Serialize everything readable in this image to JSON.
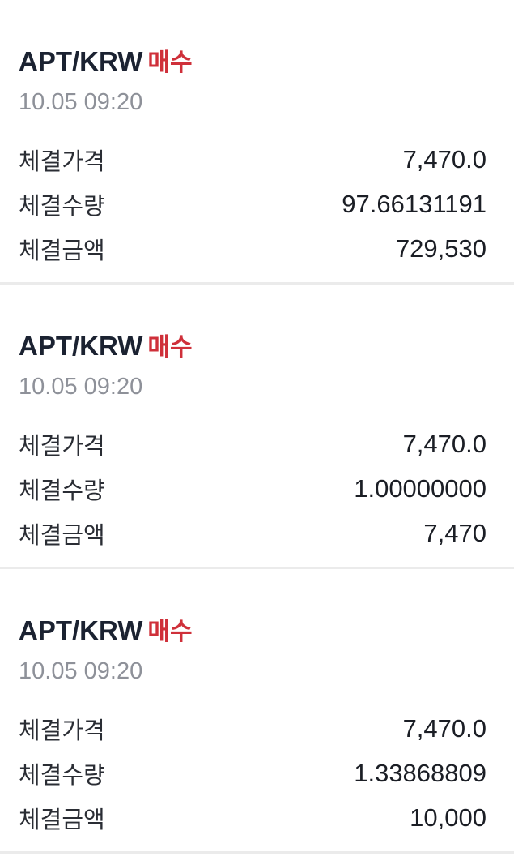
{
  "trades": [
    {
      "pair": "APT/KRW",
      "side": "매수",
      "time": "10.05 09:20",
      "rows": [
        {
          "label": "체결가격",
          "value": "7,470.0"
        },
        {
          "label": "체결수량",
          "value": "97.66131191"
        },
        {
          "label": "체결금액",
          "value": "729,530"
        }
      ]
    },
    {
      "pair": "APT/KRW",
      "side": "매수",
      "time": "10.05 09:20",
      "rows": [
        {
          "label": "체결가격",
          "value": "7,470.0"
        },
        {
          "label": "체결수량",
          "value": "1.00000000"
        },
        {
          "label": "체결금액",
          "value": "7,470"
        }
      ]
    },
    {
      "pair": "APT/KRW",
      "side": "매수",
      "time": "10.05 09:20",
      "rows": [
        {
          "label": "체결가격",
          "value": "7,470.0"
        },
        {
          "label": "체결수량",
          "value": "1.33868809"
        },
        {
          "label": "체결금액",
          "value": "10,000"
        }
      ]
    }
  ],
  "colors": {
    "buy": "#cf303a",
    "title": "#1b2231",
    "date": "#8e9199",
    "divider": "#ebebeb"
  }
}
